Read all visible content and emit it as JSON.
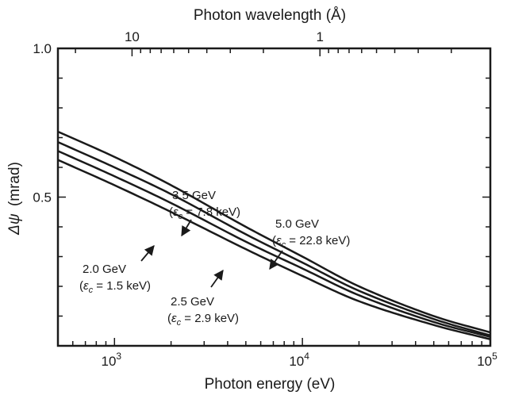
{
  "chart_data": {
    "type": "line",
    "xlabel": "Photon energy (eV)",
    "x2label": "Photon wavelength (Å)",
    "ylabel_symbol": "Δψ",
    "ylabel_unit": "(mrad)",
    "x_scale": "log",
    "xlim": [
      500,
      100000
    ],
    "ylim": [
      0,
      1.0
    ],
    "grid": false,
    "legend": "none",
    "x_tick_labels": [
      {
        "value": 1000,
        "base": "10",
        "exp": "3"
      },
      {
        "value": 10000,
        "base": "10",
        "exp": "4"
      },
      {
        "value": 100000,
        "base": "10",
        "exp": "5"
      }
    ],
    "x2_tick_labels": [
      {
        "wavelength_A": 10,
        "label": "10"
      },
      {
        "wavelength_A": 1,
        "label": "1"
      }
    ],
    "y_tick_labels": [
      {
        "value": 0.5,
        "label": "0.5"
      },
      {
        "value": 1.0,
        "label": "1.0"
      }
    ],
    "series": [
      {
        "x": [
          500,
          1000,
          2000,
          5000,
          10000,
          20000,
          50000,
          100000
        ],
        "y": [
          0.72,
          0.635,
          0.54,
          0.4,
          0.3,
          0.2,
          0.1,
          0.045
        ]
      },
      {
        "x": [
          500,
          1000,
          2000,
          5000,
          10000,
          20000,
          50000,
          100000
        ],
        "y": [
          0.685,
          0.6,
          0.51,
          0.375,
          0.28,
          0.185,
          0.09,
          0.035
        ]
      },
      {
        "x": [
          500,
          1000,
          2000,
          5000,
          10000,
          20000,
          50000,
          100000
        ],
        "y": [
          0.655,
          0.57,
          0.48,
          0.35,
          0.26,
          0.17,
          0.08,
          0.03
        ]
      },
      {
        "x": [
          500,
          1000,
          2000,
          5000,
          10000,
          20000,
          50000,
          100000
        ],
        "y": [
          0.625,
          0.54,
          0.45,
          0.325,
          0.235,
          0.15,
          0.07,
          0.022
        ]
      }
    ],
    "annotations": [
      {
        "text1": "3.5 GeV",
        "text2": "7.8 keV",
        "x": 2200,
        "y": 0.4
      },
      {
        "text1": "5.0 GeV",
        "text2": "22.8 keV",
        "x": 7000,
        "y": 0.35
      },
      {
        "text1": "2.0 GeV",
        "text2": "1.5 keV",
        "x": 1400,
        "y": 0.335
      },
      {
        "text1": "2.5 GeV",
        "text2": "2.9 keV",
        "x": 3800,
        "y": 0.32
      }
    ],
    "ann_symbol": "ε",
    "ann_subscript": "c"
  }
}
